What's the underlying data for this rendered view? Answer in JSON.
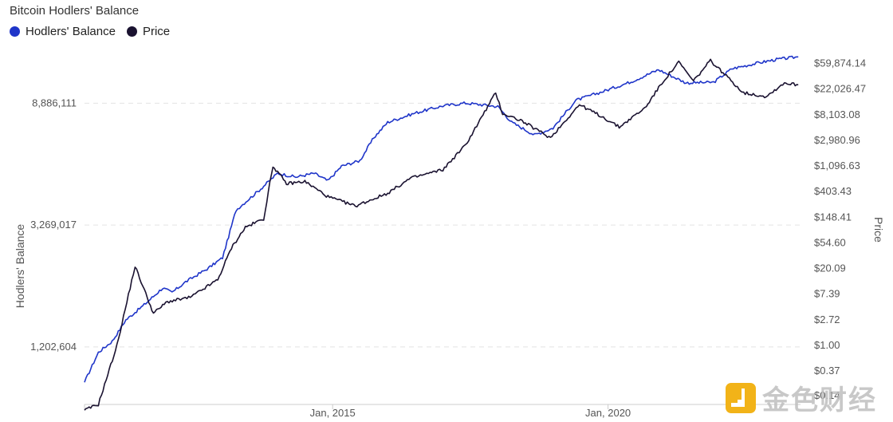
{
  "chart_data": {
    "type": "line",
    "title": "Bitcoin Hodlers' Balance",
    "legend": [
      {
        "name": "Hodlers' Balance",
        "color": "#1f35c9"
      },
      {
        "name": "Price",
        "color": "#1a1230"
      }
    ],
    "legend_position": "top-left",
    "x_axis": {
      "type": "date",
      "range": [
        "2010-07-01",
        "2023-06-30"
      ],
      "ticks": [
        {
          "date": "2015-01-01",
          "label": "Jan, 2015"
        },
        {
          "date": "2020-01-01",
          "label": "Jan, 2020"
        }
      ]
    },
    "y_left": {
      "label": "Hodlers' Balance",
      "scale": "log",
      "range": [
        750000,
        14000000
      ],
      "ticks": [
        {
          "value": 1202604,
          "label": "1,202,604"
        },
        {
          "value": 3269017,
          "label": "3,269,017"
        },
        {
          "value": 8886111,
          "label": "8,886,111"
        }
      ]
    },
    "y_right": {
      "label": "Price",
      "scale": "log",
      "range": [
        0.1,
        110000
      ],
      "ticks": [
        {
          "value": 0.14,
          "label": "$0.14"
        },
        {
          "value": 0.37,
          "label": "$0.37"
        },
        {
          "value": 1.0,
          "label": "$1.00"
        },
        {
          "value": 2.72,
          "label": "$2.72"
        },
        {
          "value": 7.39,
          "label": "$7.39"
        },
        {
          "value": 20.09,
          "label": "$20.09"
        },
        {
          "value": 54.6,
          "label": "$54.60"
        },
        {
          "value": 148.41,
          "label": "$148.41"
        },
        {
          "value": 403.43,
          "label": "$403.43"
        },
        {
          "value": 1096.63,
          "label": "$1,096.63"
        },
        {
          "value": 2980.96,
          "label": "$2,980.96"
        },
        {
          "value": 8103.08,
          "label": "$8,103.08"
        },
        {
          "value": 22026.47,
          "label": "$22,026.47"
        },
        {
          "value": 59874.14,
          "label": "$59,874.14"
        }
      ]
    },
    "grid": "horizontal dashed",
    "series": [
      {
        "name": "Hodlers' Balance",
        "axis": "left",
        "color": "#1f35c9",
        "points": [
          [
            "2010-07-01",
            900000
          ],
          [
            "2010-10-01",
            1150000
          ],
          [
            "2011-01-01",
            1260000
          ],
          [
            "2011-04-01",
            1500000
          ],
          [
            "2011-08-01",
            1700000
          ],
          [
            "2011-12-01",
            1950000
          ],
          [
            "2012-02-01",
            1880000
          ],
          [
            "2012-05-01",
            2050000
          ],
          [
            "2012-10-01",
            2300000
          ],
          [
            "2013-01-01",
            2500000
          ],
          [
            "2013-04-01",
            3700000
          ],
          [
            "2013-09-01",
            4350000
          ],
          [
            "2014-01-01",
            5000000
          ],
          [
            "2014-05-01",
            4850000
          ],
          [
            "2014-09-01",
            5000000
          ],
          [
            "2014-12-01",
            4700000
          ],
          [
            "2015-03-01",
            5300000
          ],
          [
            "2015-07-01",
            5550000
          ],
          [
            "2015-10-01",
            6700000
          ],
          [
            "2016-01-01",
            7600000
          ],
          [
            "2016-07-01",
            8200000
          ],
          [
            "2017-01-01",
            8700000
          ],
          [
            "2017-06-01",
            8900000
          ],
          [
            "2018-01-01",
            8650000
          ],
          [
            "2018-04-01",
            7600000
          ],
          [
            "2018-09-01",
            6850000
          ],
          [
            "2019-01-01",
            7250000
          ],
          [
            "2019-06-01",
            9100000
          ],
          [
            "2019-12-01",
            9800000
          ],
          [
            "2020-06-01",
            10600000
          ],
          [
            "2020-12-01",
            11700000
          ],
          [
            "2021-06-01",
            10500000
          ],
          [
            "2021-12-01",
            10550000
          ],
          [
            "2022-04-01",
            11800000
          ],
          [
            "2022-10-01",
            12400000
          ],
          [
            "2023-02-01",
            12750000
          ],
          [
            "2023-06-15",
            13000000
          ]
        ]
      },
      {
        "name": "Price",
        "axis": "right",
        "color": "#1a1230",
        "points": [
          [
            "2010-07-01",
            0.08
          ],
          [
            "2010-10-01",
            0.1
          ],
          [
            "2011-02-01",
            1.0
          ],
          [
            "2011-06-01",
            22
          ],
          [
            "2011-10-01",
            3.5
          ],
          [
            "2012-01-01",
            5.5
          ],
          [
            "2012-06-01",
            6.5
          ],
          [
            "2012-12-01",
            13
          ],
          [
            "2013-03-01",
            45
          ],
          [
            "2013-06-01",
            100
          ],
          [
            "2013-10-01",
            140
          ],
          [
            "2013-12-01",
            1100
          ],
          [
            "2014-03-01",
            550
          ],
          [
            "2014-07-01",
            600
          ],
          [
            "2014-12-01",
            330
          ],
          [
            "2015-06-01",
            230
          ],
          [
            "2016-01-01",
            380
          ],
          [
            "2016-06-01",
            680
          ],
          [
            "2017-01-01",
            950
          ],
          [
            "2017-06-01",
            2500
          ],
          [
            "2017-12-17",
            19000
          ],
          [
            "2018-02-01",
            8500
          ],
          [
            "2018-06-01",
            6500
          ],
          [
            "2018-12-15",
            3300
          ],
          [
            "2019-06-25",
            12000
          ],
          [
            "2019-12-01",
            7300
          ],
          [
            "2020-03-15",
            5000
          ],
          [
            "2020-09-01",
            10500
          ],
          [
            "2021-01-01",
            30000
          ],
          [
            "2021-04-14",
            63000
          ],
          [
            "2021-07-20",
            30000
          ],
          [
            "2021-11-10",
            67000
          ],
          [
            "2022-06-18",
            19000
          ],
          [
            "2022-11-15",
            16500
          ],
          [
            "2023-03-15",
            28000
          ],
          [
            "2023-06-15",
            26000
          ]
        ]
      }
    ]
  },
  "watermark": {
    "text": "金色财经",
    "logo_color": "#f2b318"
  }
}
